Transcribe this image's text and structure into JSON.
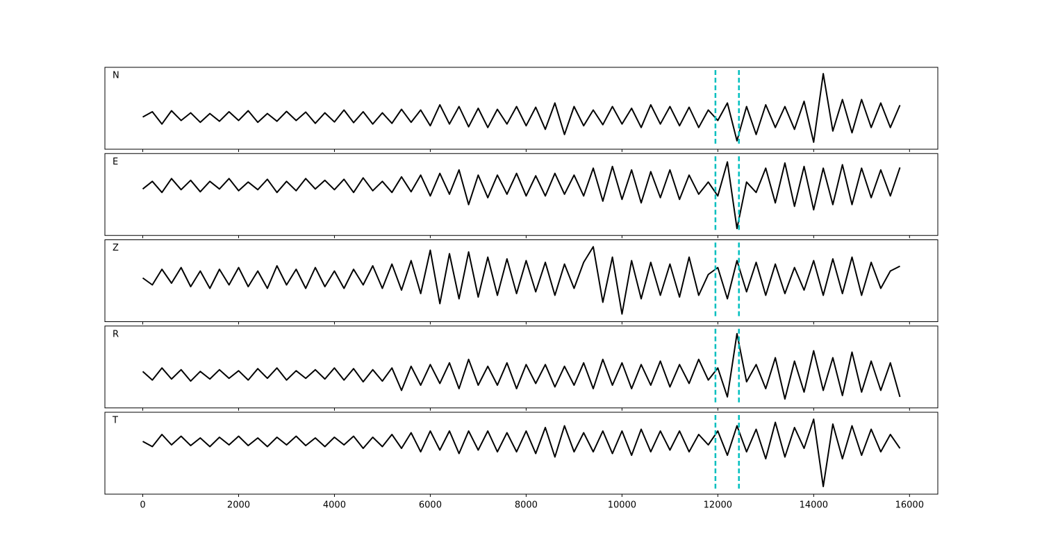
{
  "chart_data": {
    "type": "line",
    "x": [
      0,
      200,
      400,
      600,
      800,
      1000,
      1200,
      1400,
      1600,
      1800,
      2000,
      2200,
      2400,
      2600,
      2800,
      3000,
      3200,
      3400,
      3600,
      3800,
      4000,
      4200,
      4400,
      4600,
      4800,
      5000,
      5200,
      5400,
      5600,
      5800,
      6000,
      6200,
      6400,
      6600,
      6800,
      7000,
      7200,
      7400,
      7600,
      7800,
      8000,
      8200,
      8400,
      8600,
      8800,
      9000,
      9200,
      9400,
      9600,
      9800,
      10000,
      10200,
      10400,
      10600,
      10800,
      11000,
      11200,
      11400,
      11600,
      11800,
      12000,
      12200,
      12400,
      12600,
      12800,
      13000,
      13200,
      13400,
      13600,
      13800,
      14000,
      14200,
      14400,
      14600,
      14800,
      15000,
      15200,
      15400,
      15600,
      15800
    ],
    "xlim": [
      -790,
      16590
    ],
    "xticks": [
      0,
      2000,
      4000,
      6000,
      8000,
      10000,
      12000,
      14000,
      16000
    ],
    "vlines": [
      11950,
      12440
    ],
    "vline_color": "#00bfbf",
    "series": [
      {
        "name": "N",
        "color": "#000000",
        "ylim": [
          -0.92,
          1.42
        ],
        "values": [
          0.0,
          0.15,
          -0.2,
          0.18,
          -0.1,
          0.12,
          -0.15,
          0.1,
          -0.12,
          0.15,
          -0.1,
          0.18,
          -0.15,
          0.1,
          -0.12,
          0.16,
          -0.1,
          0.14,
          -0.18,
          0.12,
          -0.14,
          0.2,
          -0.16,
          0.15,
          -0.2,
          0.12,
          -0.18,
          0.22,
          -0.15,
          0.2,
          -0.25,
          0.35,
          -0.2,
          0.3,
          -0.28,
          0.25,
          -0.3,
          0.22,
          -0.2,
          0.3,
          -0.25,
          0.28,
          -0.35,
          0.4,
          -0.5,
          0.3,
          -0.25,
          0.2,
          -0.22,
          0.3,
          -0.2,
          0.25,
          -0.3,
          0.35,
          -0.2,
          0.3,
          -0.25,
          0.28,
          -0.3,
          0.2,
          -0.1,
          0.4,
          -0.68,
          0.3,
          -0.5,
          0.35,
          -0.3,
          0.3,
          -0.35,
          0.45,
          -0.72,
          1.24,
          -0.4,
          0.5,
          -0.45,
          0.5,
          -0.3,
          0.4,
          -0.3,
          0.34
        ]
      },
      {
        "name": "E",
        "color": "#000000",
        "ylim": [
          -1.44,
          0.92
        ],
        "values": [
          -0.1,
          0.12,
          -0.2,
          0.2,
          -0.12,
          0.15,
          -0.18,
          0.12,
          -0.1,
          0.2,
          -0.15,
          0.1,
          -0.12,
          0.18,
          -0.2,
          0.12,
          -0.15,
          0.2,
          -0.1,
          0.15,
          -0.12,
          0.18,
          -0.2,
          0.22,
          -0.15,
          0.12,
          -0.2,
          0.25,
          -0.18,
          0.3,
          -0.3,
          0.35,
          -0.25,
          0.45,
          -0.55,
          0.3,
          -0.35,
          0.3,
          -0.25,
          0.35,
          -0.3,
          0.28,
          -0.3,
          0.35,
          -0.25,
          0.3,
          -0.3,
          0.5,
          -0.45,
          0.55,
          -0.4,
          0.45,
          -0.5,
          0.4,
          -0.35,
          0.45,
          -0.4,
          0.3,
          -0.25,
          0.1,
          -0.3,
          0.68,
          -1.24,
          0.1,
          -0.2,
          0.5,
          -0.5,
          0.65,
          -0.6,
          0.55,
          -0.7,
          0.5,
          -0.55,
          0.6,
          -0.55,
          0.5,
          -0.35,
          0.45,
          -0.3,
          0.52
        ]
      },
      {
        "name": "Z",
        "color": "#000000",
        "ylim": [
          -1.26,
          1.1
        ],
        "values": [
          0.0,
          -0.2,
          0.25,
          -0.15,
          0.3,
          -0.25,
          0.2,
          -0.3,
          0.25,
          -0.2,
          0.3,
          -0.25,
          0.2,
          -0.3,
          0.35,
          -0.2,
          0.25,
          -0.3,
          0.3,
          -0.25,
          0.2,
          -0.3,
          0.25,
          -0.2,
          0.35,
          -0.3,
          0.4,
          -0.35,
          0.5,
          -0.45,
          0.8,
          -0.74,
          0.7,
          -0.6,
          0.75,
          -0.55,
          0.6,
          -0.5,
          0.55,
          -0.45,
          0.5,
          -0.4,
          0.45,
          -0.5,
          0.4,
          -0.3,
          0.45,
          0.9,
          -0.7,
          0.6,
          -1.04,
          0.5,
          -0.6,
          0.45,
          -0.5,
          0.4,
          -0.55,
          0.6,
          -0.5,
          0.1,
          0.3,
          -0.6,
          0.5,
          -0.4,
          0.45,
          -0.5,
          0.4,
          -0.45,
          0.3,
          -0.35,
          0.5,
          -0.5,
          0.55,
          -0.45,
          0.6,
          -0.5,
          0.45,
          -0.3,
          0.2,
          0.34
        ]
      },
      {
        "name": "R",
        "color": "#000000",
        "ylim": [
          -0.96,
          1.42
        ],
        "values": [
          0.1,
          -0.15,
          0.2,
          -0.12,
          0.15,
          -0.18,
          0.1,
          -0.12,
          0.15,
          -0.1,
          0.12,
          -0.15,
          0.18,
          -0.1,
          0.2,
          -0.15,
          0.12,
          -0.1,
          0.15,
          -0.12,
          0.2,
          -0.15,
          0.18,
          -0.2,
          0.15,
          -0.18,
          0.2,
          -0.45,
          0.25,
          -0.3,
          0.3,
          -0.25,
          0.35,
          -0.4,
          0.45,
          -0.3,
          0.25,
          -0.3,
          0.35,
          -0.4,
          0.3,
          -0.25,
          0.3,
          -0.35,
          0.25,
          -0.3,
          0.35,
          -0.4,
          0.45,
          -0.3,
          0.35,
          -0.4,
          0.3,
          -0.3,
          0.4,
          -0.35,
          0.3,
          -0.25,
          0.45,
          -0.15,
          0.2,
          -0.64,
          1.2,
          -0.2,
          0.3,
          -0.4,
          0.5,
          -0.7,
          0.4,
          -0.5,
          0.7,
          -0.45,
          0.5,
          -0.6,
          0.66,
          -0.5,
          0.4,
          -0.45,
          0.35,
          -0.64
        ]
      },
      {
        "name": "T",
        "color": "#000000",
        "ylim": [
          -1.52,
          0.84
        ],
        "values": [
          0.0,
          -0.15,
          0.2,
          -0.1,
          0.15,
          -0.12,
          0.1,
          -0.15,
          0.12,
          -0.1,
          0.15,
          -0.12,
          0.1,
          -0.15,
          0.12,
          -0.1,
          0.15,
          -0.12,
          0.1,
          -0.15,
          0.12,
          -0.1,
          0.15,
          -0.2,
          0.12,
          -0.15,
          0.2,
          -0.2,
          0.25,
          -0.3,
          0.3,
          -0.25,
          0.3,
          -0.35,
          0.3,
          -0.25,
          0.3,
          -0.3,
          0.25,
          -0.3,
          0.3,
          -0.35,
          0.4,
          -0.45,
          0.45,
          -0.3,
          0.25,
          -0.3,
          0.3,
          -0.35,
          0.3,
          -0.4,
          0.35,
          -0.3,
          0.3,
          -0.25,
          0.3,
          -0.3,
          0.2,
          -0.1,
          0.3,
          -0.4,
          0.45,
          -0.3,
          0.35,
          -0.5,
          0.55,
          -0.45,
          0.4,
          -0.2,
          0.64,
          -1.3,
          0.5,
          -0.5,
          0.45,
          -0.4,
          0.35,
          -0.3,
          0.2,
          -0.2
        ]
      }
    ]
  }
}
